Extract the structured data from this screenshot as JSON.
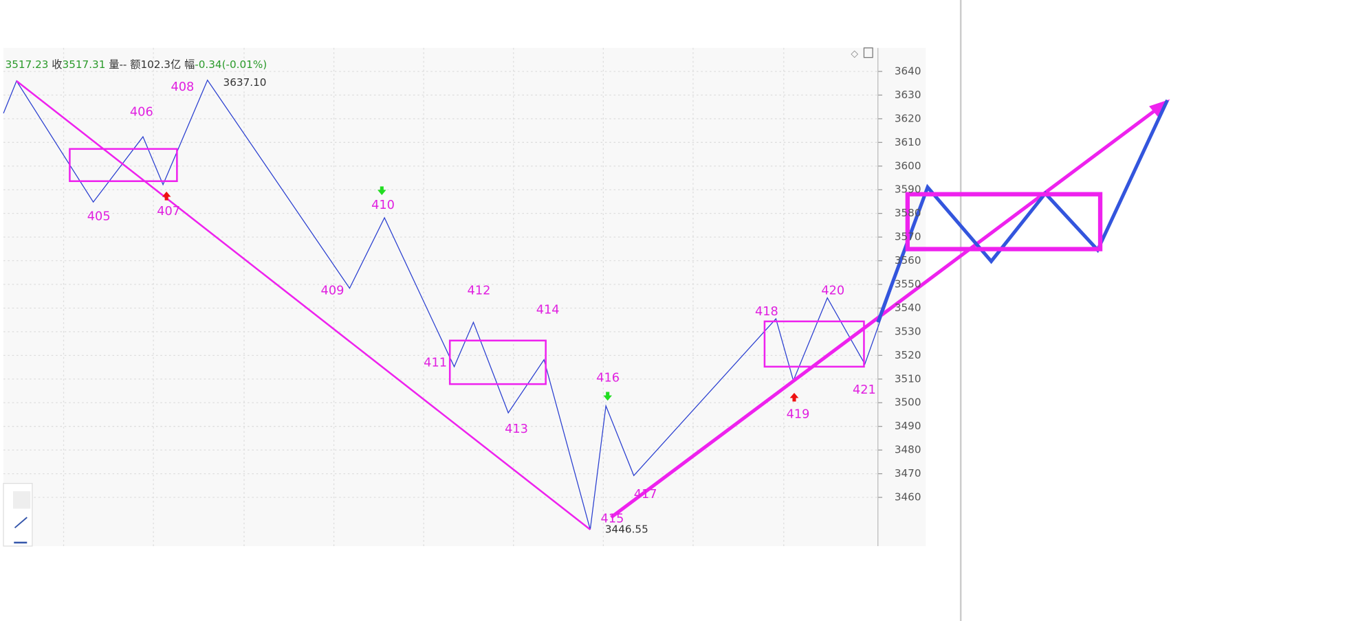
{
  "header": {
    "open_fragment": "3517.23",
    "close_label": "收",
    "close": "3517.31",
    "volume": "量-- 额102.3亿",
    "change_label": "幅",
    "change": "-0.34(-0.01%)"
  },
  "price_axis": {
    "ticks": [
      "3640",
      "3630",
      "3620",
      "3610",
      "3600",
      "3590",
      "3580",
      "3570",
      "3560",
      "3550",
      "3540",
      "3530",
      "3520",
      "3510",
      "3500",
      "3490",
      "3480",
      "3470",
      "3460"
    ]
  },
  "wave_labels": [
    "405",
    "406",
    "407",
    "408",
    "409",
    "410",
    "411",
    "412",
    "413",
    "414",
    "415",
    "416",
    "417",
    "418",
    "419",
    "420",
    "421"
  ],
  "price_labels": [
    "3637.10",
    "3446.55"
  ]
}
